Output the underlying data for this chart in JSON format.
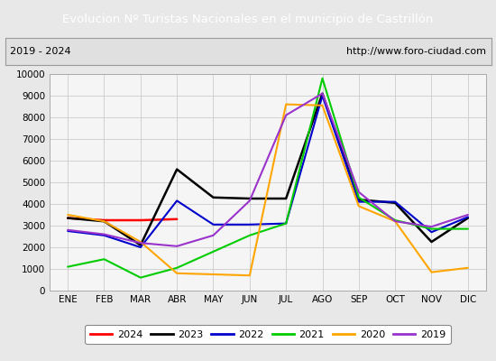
{
  "title": "Evolucion Nº Turistas Nacionales en el municipio de Castrillón",
  "subtitle_left": "2019 - 2024",
  "subtitle_right": "http://www.foro-ciudad.com",
  "title_bg_color": "#4d7ebf",
  "title_text_color": "#ffffff",
  "months": [
    "ENE",
    "FEB",
    "MAR",
    "ABR",
    "MAY",
    "JUN",
    "JUL",
    "AGO",
    "SEP",
    "OCT",
    "NOV",
    "DIC"
  ],
  "ylim": [
    0,
    10000
  ],
  "yticks": [
    0,
    1000,
    2000,
    3000,
    4000,
    5000,
    6000,
    7000,
    8000,
    9000,
    10000
  ],
  "series": {
    "2024": {
      "color": "#ff0000",
      "linewidth": 1.8,
      "data": [
        3350,
        3250,
        3250,
        3300,
        null,
        null,
        null,
        null,
        null,
        null,
        null,
        null
      ]
    },
    "2023": {
      "color": "#000000",
      "linewidth": 1.8,
      "data": [
        3350,
        3200,
        2100,
        5600,
        4300,
        4250,
        4250,
        9100,
        4200,
        4050,
        2250,
        3350
      ]
    },
    "2022": {
      "color": "#0000cc",
      "linewidth": 1.5,
      "data": [
        2750,
        2550,
        2000,
        4150,
        3050,
        3050,
        3100,
        9000,
        4100,
        4100,
        2700,
        3400
      ]
    },
    "2021": {
      "color": "#00cc00",
      "linewidth": 1.5,
      "data": [
        1100,
        1450,
        600,
        1050,
        1800,
        2550,
        3100,
        9800,
        4300,
        3250,
        2850,
        2850
      ]
    },
    "2020": {
      "color": "#ffa500",
      "linewidth": 1.5,
      "data": [
        3500,
        3200,
        2250,
        800,
        750,
        700,
        8600,
        8550,
        3900,
        3200,
        850,
        1050
      ]
    },
    "2019": {
      "color": "#9933cc",
      "linewidth": 1.5,
      "data": [
        2800,
        2600,
        2200,
        2050,
        2550,
        4150,
        8100,
        9100,
        4550,
        3200,
        2950,
        3500
      ]
    }
  },
  "legend_order": [
    "2024",
    "2023",
    "2022",
    "2021",
    "2020",
    "2019"
  ],
  "background_color": "#e8e8e8",
  "plot_bg_color": "#f5f5f5",
  "subtitle_bg_color": "#e0e0e0",
  "grid_color": "#cccccc"
}
